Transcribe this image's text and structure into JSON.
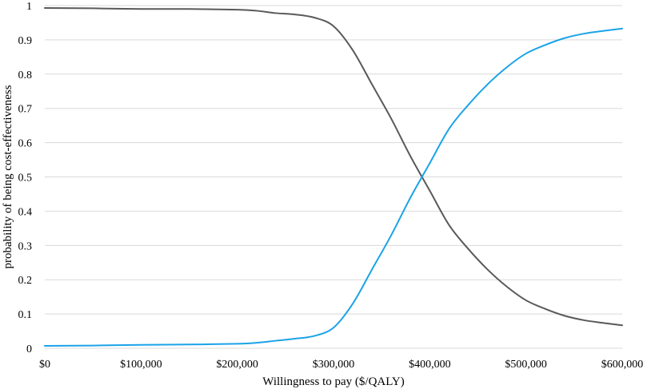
{
  "chart_data": {
    "type": "line",
    "title": "",
    "xlabel": "Willingness to pay ($/QALY)",
    "ylabel": "probability of being  cost-effectiveness",
    "xlim": [
      0,
      600000
    ],
    "ylim": [
      0,
      1
    ],
    "grid": true,
    "x_ticks": [
      0,
      100000,
      200000,
      300000,
      400000,
      500000,
      600000
    ],
    "x_tick_labels": [
      "$0",
      "$100,000",
      "$200,000",
      "$300,000",
      "$400,000",
      "$500,000",
      "$600,000"
    ],
    "y_ticks": [
      0,
      0.1,
      0.2,
      0.3,
      0.4,
      0.5,
      0.6,
      0.7,
      0.8,
      0.9,
      1
    ],
    "y_tick_labels": [
      "0",
      "0.1",
      "0.2",
      "0.3",
      "0.4",
      "0.5",
      "0.6",
      "0.7",
      "0.8",
      "0.9",
      "1"
    ],
    "series": [
      {
        "color": "#595959",
        "x": [
          0,
          50000,
          100000,
          150000,
          200000,
          220000,
          240000,
          260000,
          280000,
          300000,
          320000,
          340000,
          360000,
          380000,
          400000,
          420000,
          440000,
          460000,
          480000,
          500000,
          520000,
          540000,
          560000,
          580000,
          600000
        ],
        "values": [
          0.993,
          0.992,
          0.99,
          0.99,
          0.988,
          0.985,
          0.978,
          0.974,
          0.965,
          0.94,
          0.87,
          0.77,
          0.67,
          0.56,
          0.46,
          0.36,
          0.29,
          0.23,
          0.18,
          0.14,
          0.115,
          0.095,
          0.082,
          0.074,
          0.067
        ]
      },
      {
        "color": "#1aa3e8",
        "x": [
          0,
          50000,
          100000,
          150000,
          200000,
          220000,
          240000,
          260000,
          280000,
          300000,
          320000,
          340000,
          360000,
          380000,
          400000,
          420000,
          440000,
          460000,
          480000,
          500000,
          520000,
          540000,
          560000,
          580000,
          600000
        ],
        "values": [
          0.007,
          0.008,
          0.01,
          0.011,
          0.013,
          0.016,
          0.022,
          0.028,
          0.036,
          0.06,
          0.13,
          0.23,
          0.33,
          0.44,
          0.54,
          0.64,
          0.71,
          0.77,
          0.82,
          0.86,
          0.885,
          0.905,
          0.918,
          0.926,
          0.933
        ]
      }
    ]
  }
}
